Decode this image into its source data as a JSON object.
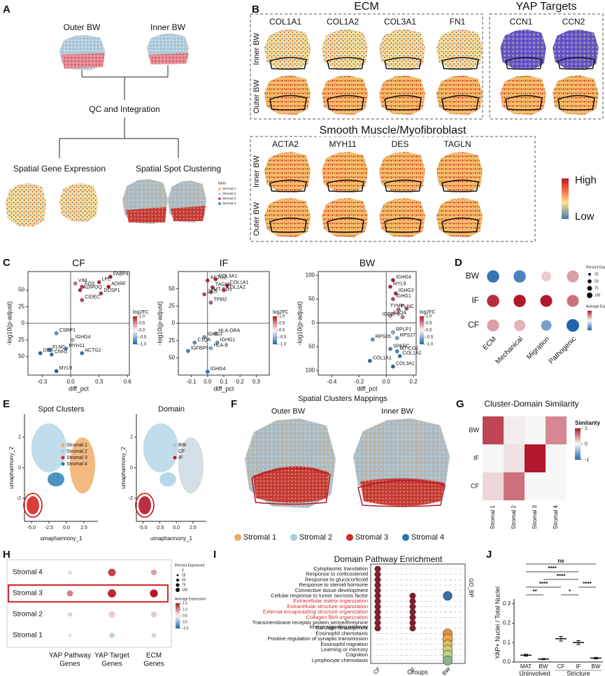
{
  "panel_a": {
    "letter": "A",
    "outer": "Outer BW",
    "inner": "Inner BW",
    "step": "QC and Integration",
    "left": "Spatial Gene Expression",
    "right": "Spatial Spot Clustering",
    "legend_title": "ident",
    "legend": [
      "Stromal 1",
      "Stromal 2",
      "Stromal 3",
      "Stromal 4"
    ]
  },
  "panel_b": {
    "letter": "B",
    "groups": [
      {
        "title": "ECM",
        "genes": [
          "COL1A1",
          "COL1A2",
          "COL3A1",
          "FN1"
        ]
      },
      {
        "title": "YAP Targets",
        "genes": [
          "CCN1",
          "CCN2"
        ]
      },
      {
        "title": "Smooth Muscle/Myofibroblast",
        "genes": [
          "ACTA2",
          "MYH11",
          "DES",
          "TAGLN"
        ]
      }
    ],
    "rows": [
      "Inner BW",
      "Outer BW"
    ],
    "colorbar": [
      "High",
      "Low"
    ]
  },
  "panel_c": {
    "letter": "C",
    "xlabel": "diff_pct",
    "ylabel": "-log10(p-adjust)",
    "legend_title": "log2FC",
    "legend_ticks": [
      {
        "value": 1,
        "label": "1.0"
      },
      0.5,
      {
        "value": 0,
        "label": "0.0"
      },
      -0.5,
      {
        "value": -1,
        "label": "-1.0"
      }
    ],
    "plots": [
      {
        "title": "CF",
        "xlim": [
          -0.45,
          0.62
        ],
        "ylim": [
          -78,
          78
        ],
        "xticks": [
          -0.3,
          {
            "value": 0,
            "label": "0.0"
          },
          0.3,
          0.6
        ],
        "yticks": [
          50,
          25,
          0,
          {
            "value": -25,
            "label": "25"
          },
          {
            "value": -50,
            "label": "50"
          }
        ],
        "points": [
          {
            "label": "FABP4",
            "x": 0.42,
            "y": 70,
            "log2fc": 1.0
          },
          {
            "label": "LPL",
            "x": 0.3,
            "y": 62,
            "log2fc": 0.9
          },
          {
            "label": "VIM",
            "x": 0.05,
            "y": 60,
            "log2fc": 0.6
          },
          {
            "label": "FOS",
            "x": 0.12,
            "y": 55,
            "log2fc": 0.8
          },
          {
            "label": "ADIRF",
            "x": 0.4,
            "y": 55,
            "log2fc": 1.0
          },
          {
            "label": "ADIPOQ",
            "x": 0.1,
            "y": 50,
            "log2fc": 0.9
          },
          {
            "label": "DUSP1",
            "x": 0.32,
            "y": 45,
            "log2fc": 0.9
          },
          {
            "label": "CIDEC",
            "x": 0.12,
            "y": 35,
            "log2fc": 0.8
          },
          {
            "label": "CSRP1",
            "x": -0.15,
            "y": -15,
            "log2fc": -0.7
          },
          {
            "label": "IGHG4",
            "x": 0.02,
            "y": -25,
            "log2fc": -0.4
          },
          {
            "label": "FLNC",
            "x": -0.22,
            "y": -40,
            "log2fc": -0.9
          },
          {
            "label": "MYH11",
            "x": -0.05,
            "y": -38,
            "log2fc": -0.8
          },
          {
            "label": "DES",
            "x": -0.32,
            "y": -45,
            "log2fc": -1.0
          },
          {
            "label": "CNN1",
            "x": -0.2,
            "y": -47,
            "log2fc": -0.9
          },
          {
            "label": "ACTG2",
            "x": 0.12,
            "y": -45,
            "log2fc": -0.9
          },
          {
            "label": "MYL9",
            "x": -0.15,
            "y": -72,
            "log2fc": -1.0
          }
        ]
      },
      {
        "title": "IF",
        "xlim": [
          -0.18,
          0.38
        ],
        "ylim": [
          -75,
          75
        ],
        "xticks": [
          -0.1,
          {
            "value": 0,
            "label": "0.0"
          },
          0.1,
          0.2,
          0.3
        ],
        "yticks": [
          50,
          25,
          0,
          {
            "value": -25,
            "label": "25"
          },
          {
            "value": -50,
            "label": "50"
          }
        ],
        "points": [
          {
            "label": "ACTG2",
            "x": 0.0,
            "y": 62,
            "log2fc": 0.9
          },
          {
            "label": "COL3A1",
            "x": 0.05,
            "y": 64,
            "log2fc": 1.0
          },
          {
            "label": "TAGLN",
            "x": 0.03,
            "y": 52,
            "log2fc": 0.9
          },
          {
            "label": "COL1A1",
            "x": 0.12,
            "y": 55,
            "log2fc": 1.0
          },
          {
            "label": "MT-CO1",
            "x": 0.02,
            "y": 45,
            "log2fc": 0.7
          },
          {
            "label": "COL1A2",
            "x": 0.1,
            "y": 48,
            "log2fc": 0.9
          },
          {
            "label": "DES",
            "x": -0.02,
            "y": 42,
            "log2fc": 0.8
          },
          {
            "label": "TPM2",
            "x": 0.02,
            "y": 30,
            "log2fc": 0.7
          },
          {
            "label": "HLA-DRA",
            "x": 0.05,
            "y": -15,
            "log2fc": -0.5
          },
          {
            "label": "IGHG3",
            "x": -0.02,
            "y": -20,
            "log2fc": -0.6
          },
          {
            "label": "C1QA",
            "x": -0.08,
            "y": -28,
            "log2fc": -0.7
          },
          {
            "label": "IGHG1",
            "x": 0.06,
            "y": -28,
            "log2fc": -0.6
          },
          {
            "label": "HLA-B",
            "x": 0.02,
            "y": -36,
            "log2fc": -0.5
          },
          {
            "label": "IGFBP5",
            "x": -0.12,
            "y": -40,
            "log2fc": -0.8
          },
          {
            "label": "IGHG4",
            "x": 0.0,
            "y": -70,
            "log2fc": -0.9
          }
        ]
      },
      {
        "title": "BW",
        "xlim": [
          -0.5,
          0.22
        ],
        "ylim": [
          -110,
          108
        ],
        "xticks": [
          -0.4,
          -0.2,
          {
            "value": 0,
            "label": "0.0"
          },
          0.2
        ],
        "yticks": [
          100,
          50,
          0,
          {
            "value": -50,
            "label": "50"
          },
          {
            "value": -100,
            "label": "100"
          }
        ],
        "points": [
          {
            "label": "IGHG4",
            "x": 0.05,
            "y": 90,
            "log2fc": 1.0
          },
          {
            "label": "MYL9",
            "x": 0.03,
            "y": 76,
            "log2fc": 0.9
          },
          {
            "label": "IGHG3",
            "x": 0.07,
            "y": 62,
            "log2fc": 0.9
          },
          {
            "label": "IGHG1",
            "x": 0.05,
            "y": 50,
            "log2fc": 0.8
          },
          {
            "label": "FLNC",
            "x": 0.09,
            "y": 28,
            "log2fc": 0.7
          },
          {
            "label": "TYMP",
            "x": 0.15,
            "y": 30,
            "log2fc": 0.8
          },
          {
            "label": "C1QA",
            "x": 0.03,
            "y": 15,
            "log2fc": 0.5
          },
          {
            "label": "IGFBP5",
            "x": 0.12,
            "y": 12,
            "log2fc": 0.6
          },
          {
            "label": "RPLP1",
            "x": 0.05,
            "y": -20,
            "log2fc": -0.5
          },
          {
            "label": "RPS27",
            "x": 0.08,
            "y": -32,
            "log2fc": -0.6
          },
          {
            "label": "RPS26",
            "x": -0.1,
            "y": -35,
            "log2fc": -0.7
          },
          {
            "label": "SPARC",
            "x": 0.03,
            "y": -55,
            "log2fc": -0.8
          },
          {
            "label": "MT-CO1",
            "x": 0.08,
            "y": -60,
            "log2fc": -0.8
          },
          {
            "label": "COL1A2",
            "x": 0.1,
            "y": -70,
            "log2fc": -0.9
          },
          {
            "label": "COL1A1",
            "x": -0.12,
            "y": -80,
            "log2fc": -1.0
          },
          {
            "label": "COL3A1",
            "x": 0.05,
            "y": -92,
            "log2fc": -1.0
          }
        ]
      }
    ]
  },
  "panel_d": {
    "letter": "D",
    "rows": [
      "BW",
      "IF",
      "CF"
    ],
    "cols": [
      "ECM",
      "Mechanical",
      "Migration",
      "Pathogenic"
    ],
    "percent": [
      [
        95,
        95,
        60,
        90
      ],
      [
        95,
        95,
        90,
        90
      ],
      [
        90,
        80,
        70,
        100
      ]
    ],
    "average": [
      [
        -0.9,
        -0.8,
        0.2,
        0.4
      ],
      [
        0.9,
        1.0,
        1.0,
        0.6
      ],
      [
        0.4,
        0.3,
        -0.6,
        -1.0
      ]
    ],
    "size_title": "Percent Expressed",
    "size_ticks": [
      25,
      50,
      75,
      100
    ],
    "color_title": "Average Expression"
  },
  "panel_e": {
    "letter": "E",
    "titles": [
      "Spot Clusters",
      "Domain"
    ],
    "xlabel": "umapharmony_1",
    "ylabel": "umapharmony_2",
    "xlim": [
      -6,
      4.5
    ],
    "ylim": [
      -3.5,
      3.5
    ],
    "xticks": [
      {
        "value": -5,
        "label": "-5.0"
      },
      -2.5,
      {
        "value": 0,
        "label": "0.0"
      },
      2.5
    ],
    "yticks": [
      -2,
      0,
      2
    ],
    "cluster_legend": [
      {
        "name": "Stromal 1",
        "color": "#f0a860"
      },
      {
        "name": "Stromal 2",
        "color": "#a6cee3"
      },
      {
        "name": "Stromal 3",
        "color": "#d62728"
      },
      {
        "name": "Stromal 4",
        "color": "#1f78b4"
      }
    ],
    "domain_legend": [
      {
        "name": "BW",
        "color": "#a6cee3"
      },
      {
        "name": "CF",
        "color": "#c9d6de"
      },
      {
        "name": "IF",
        "color": "#b2182b"
      }
    ]
  },
  "panel_f": {
    "letter": "F",
    "title": "Spatial Clusters Mappings",
    "labels": [
      "Outer BW",
      "Inner BW"
    ],
    "legend": [
      {
        "name": "Stromal 1",
        "color": "#f0a860"
      },
      {
        "name": "Stromal 2",
        "color": "#a6cee3"
      },
      {
        "name": "Stromal 3",
        "color": "#d62728"
      },
      {
        "name": "Stromal 4",
        "color": "#1f78b4"
      }
    ]
  },
  "panel_g": {
    "letter": "G",
    "title": "Cluster-Domain Similarity",
    "rows": [
      "BW",
      "IF",
      "CF"
    ],
    "cols": [
      "Stromal 1",
      "Stromal 2",
      "Stromal 3",
      "Stromal 4"
    ],
    "values": [
      [
        0.8,
        0.05,
        0,
        0.5
      ],
      [
        0,
        0.1,
        1.0,
        0
      ],
      [
        0.15,
        0.6,
        0,
        0
      ]
    ],
    "colorbar_title": "Similarity",
    "colorbar_ticks": [
      1,
      0,
      -1
    ]
  },
  "panel_h": {
    "letter": "H",
    "rows": [
      "Stromal 4",
      "Stromal 3",
      "Stromal 2",
      "Stromal 1"
    ],
    "cols": [
      [
        "YAP Pathway",
        "Genes"
      ],
      [
        "YAP Target",
        "Genes"
      ],
      [
        "ECM",
        "Genes"
      ]
    ],
    "percent": [
      [
        20,
        60,
        35
      ],
      [
        40,
        70,
        65
      ],
      [
        20,
        45,
        40
      ],
      [
        10,
        30,
        25
      ]
    ],
    "average": [
      [
        0.2,
        1.2,
        0.6
      ],
      [
        0.8,
        1.4,
        1.5
      ],
      [
        0.3,
        0.3,
        0.3
      ],
      [
        -0.3,
        -0.4,
        -0.3
      ]
    ],
    "highlight_row": 1,
    "highlight_color": "#d62728",
    "size_title": "Percent Expressed",
    "size_ticks": [
      0,
      25,
      50,
      75,
      100
    ],
    "color_title": "Average Expression",
    "color_ticks": [
      1.5,
      {
        "value": 1,
        "label": "1.0"
      },
      0.5,
      {
        "value": 0,
        "label": "0.0"
      },
      -0.5
    ]
  },
  "panel_i": {
    "letter": "I",
    "title": "Domain Pathway Enrichment",
    "xlabel": "Groups",
    "side_label": "GO_BP",
    "terms": [
      [
        "Cytoplasmic translation"
      ],
      [
        "Response to corticosteroid"
      ],
      [
        "Response to glucocorticoid"
      ],
      [
        "Response to steroid hormone"
      ],
      [
        "Connective tissue development"
      ],
      [
        "Cellular response to tumor necrosis factor"
      ],
      [
        "Extracellular matrix organization"
      ],
      [
        "Extracellular structure organization"
      ],
      [
        "External encapsulating structure organization"
      ],
      [
        "Collagen fibril organization"
      ],
      [
        "Transmembrane receptor protein serine/threonine",
        "kinase signaling pathway"
      ],
      [
        "Cartilage development"
      ],
      [
        "Eosinophil chemotaxis"
      ],
      [
        "Positive regulation of synaptic transmission"
      ],
      [
        "Eosinophil migration"
      ],
      [
        "Learning or memory"
      ],
      [
        "Cognition"
      ],
      [
        "Lymphocyte chemotaxis"
      ]
    ],
    "highlight": [
      6,
      7,
      8,
      9
    ],
    "highlight_color": "#d62728",
    "series": [
      {
        "name": "CF",
        "values": [
          4,
          4,
          4,
          4,
          4,
          4,
          4,
          4,
          4,
          4,
          4,
          4,
          null,
          null,
          null,
          null,
          null,
          null
        ],
        "padj": [
          6,
          6,
          6,
          6,
          6,
          6,
          6,
          6,
          6,
          6,
          6,
          6,
          null,
          null,
          null,
          null,
          null,
          null
        ]
      },
      {
        "name": "IF",
        "values": [
          null,
          null,
          null,
          null,
          null,
          4,
          4,
          4,
          4,
          4,
          4,
          4,
          null,
          null,
          null,
          null,
          null,
          null
        ],
        "padj": [
          null,
          null,
          null,
          null,
          null,
          6,
          6,
          6,
          6,
          6,
          6,
          6,
          null,
          null,
          null,
          null,
          null,
          null
        ]
      },
      {
        "name": "BW",
        "values": [
          null,
          null,
          null,
          null,
          null,
          9,
          null,
          null,
          null,
          null,
          null,
          null,
          10,
          11,
          10,
          10,
          11,
          10
        ],
        "padj": [
          null,
          null,
          null,
          null,
          null,
          1,
          null,
          null,
          null,
          null,
          null,
          null,
          4.5,
          4,
          3.5,
          3,
          2.5,
          2
        ]
      }
    ]
  },
  "panel_j": {
    "letter": "J",
    "ylabel": "YAP+ Nuclei / Total Nuclei",
    "ylim": [
      0,
      0.31
    ],
    "yticks": [
      {
        "value": 0,
        "label": "0.0"
      },
      0.1,
      0.2,
      0.3
    ],
    "categories": [
      "MAT",
      "BW",
      "CF",
      "IF",
      "BW"
    ],
    "values": [
      0.035,
      0.015,
      0.12,
      0.1,
      0.02
    ],
    "errors": [
      0.005,
      0.003,
      0.012,
      0.01,
      0.004
    ],
    "groups": [
      {
        "label": "Uninvolved",
        "span": [
          0,
          1
        ]
      },
      {
        "label": "Stricture",
        "span": [
          2,
          4
        ]
      }
    ],
    "annotations": [
      {
        "label": "ns",
        "span": [
          0,
          4
        ]
      },
      {
        "label": "****",
        "span": [
          0,
          3
        ]
      },
      {
        "label": "****",
        "span": [
          1,
          3
        ]
      },
      {
        "label": "****",
        "span": [
          0,
          2
        ]
      },
      {
        "label": "****",
        "span": [
          3,
          4
        ]
      },
      {
        "label": "**",
        "span": [
          0,
          1
        ]
      },
      {
        "label": "*",
        "span": [
          2,
          3
        ]
      }
    ]
  }
}
